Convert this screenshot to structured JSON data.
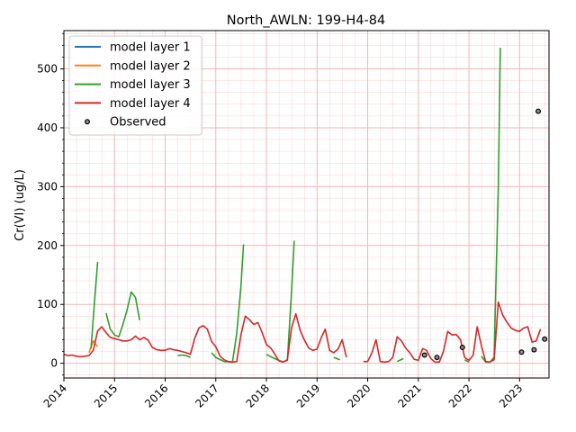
{
  "chart_data": {
    "type": "line",
    "title": "North_AWLN: 199-H4-84",
    "xlabel": "",
    "ylabel": "Cr(VI) (ug/L)",
    "xlim": [
      "2014-01-01",
      "2023-08-01"
    ],
    "ylim": [
      -25,
      565
    ],
    "x_ticks": [
      "2014",
      "2015",
      "2016",
      "2017",
      "2018",
      "2019",
      "2020",
      "2021",
      "2022",
      "2023"
    ],
    "y_ticks": [
      0,
      100,
      200,
      300,
      400,
      500
    ],
    "grid": true,
    "legend_position": "top-left",
    "colors": {
      "layer1": "#1f77b4",
      "layer2": "#ff7f0e",
      "layer3": "#2ca02c",
      "layer4": "#d62728",
      "observed": "#000000",
      "grid": "#f5b5b5"
    },
    "series": [
      {
        "name": "model layer 1",
        "color": "#1f77b4",
        "segments": []
      },
      {
        "name": "model layer 2",
        "color": "#ff7f0e",
        "segments": [
          [
            [
              "2014-07-01",
              18
            ],
            [
              "2014-08-01",
              38
            ],
            [
              "2014-09-01",
              28
            ]
          ]
        ]
      },
      {
        "name": "model layer 3",
        "color": "#2ca02c",
        "segments": [
          [
            [
              "2014-07-15",
              25
            ],
            [
              "2014-08-15",
              120
            ],
            [
              "2014-09-01",
              172
            ]
          ],
          [
            [
              "2014-11-01",
              85
            ],
            [
              "2014-12-01",
              58
            ],
            [
              "2015-01-01",
              48
            ],
            [
              "2015-02-01",
              45
            ],
            [
              "2015-03-01",
              65
            ],
            [
              "2015-04-01",
              90
            ],
            [
              "2015-05-01",
              121
            ],
            [
              "2015-06-01",
              112
            ],
            [
              "2015-07-01",
              73
            ]
          ],
          [
            [
              "2016-04-01",
              13
            ],
            [
              "2016-05-01",
              14
            ],
            [
              "2016-06-01",
              13
            ],
            [
              "2016-07-01",
              10
            ]
          ],
          [
            [
              "2016-12-01",
              18
            ],
            [
              "2017-01-01",
              10
            ],
            [
              "2017-03-01",
              3
            ],
            [
              "2017-05-01",
              2
            ],
            [
              "2017-06-01",
              50
            ],
            [
              "2017-07-01",
              130
            ],
            [
              "2017-07-20",
              202
            ]
          ],
          [
            [
              "2018-01-01",
              15
            ],
            [
              "2018-03-01",
              8
            ],
            [
              "2018-05-01",
              2
            ],
            [
              "2018-06-01",
              5
            ],
            [
              "2018-07-01",
              120
            ],
            [
              "2018-07-20",
              208
            ]
          ],
          [
            [
              "2019-05-01",
              10
            ],
            [
              "2019-06-15",
              6
            ]
          ],
          [
            [
              "2020-08-01",
              3
            ],
            [
              "2020-09-15",
              8
            ]
          ],
          [
            [
              "2021-12-01",
              6
            ],
            [
              "2022-01-01",
              2
            ]
          ],
          [
            [
              "2022-04-01",
              12
            ],
            [
              "2022-05-01",
              2
            ],
            [
              "2022-06-01",
              2
            ],
            [
              "2022-07-01",
              10
            ],
            [
              "2022-08-01",
              300
            ],
            [
              "2022-08-15",
              536
            ]
          ]
        ]
      },
      {
        "name": "model layer 4",
        "color": "#d62728",
        "segments": [
          [
            [
              "2014-01-01",
              15
            ],
            [
              "2014-02-01",
              13
            ],
            [
              "2014-03-01",
              14
            ],
            [
              "2014-04-01",
              12
            ],
            [
              "2014-05-01",
              11
            ],
            [
              "2014-06-01",
              12
            ],
            [
              "2014-07-01",
              13
            ],
            [
              "2014-08-01",
              22
            ],
            [
              "2014-09-01",
              55
            ],
            [
              "2014-10-01",
              62
            ],
            [
              "2014-11-01",
              52
            ],
            [
              "2014-12-01",
              44
            ],
            [
              "2015-01-01",
              42
            ],
            [
              "2015-02-01",
              40
            ],
            [
              "2015-03-01",
              38
            ],
            [
              "2015-04-01",
              38
            ],
            [
              "2015-05-01",
              40
            ],
            [
              "2015-06-01",
              46
            ],
            [
              "2015-07-01",
              40
            ],
            [
              "2015-08-01",
              44
            ],
            [
              "2015-09-01",
              39
            ],
            [
              "2015-10-01",
              27
            ],
            [
              "2015-11-01",
              23
            ],
            [
              "2015-12-01",
              22
            ],
            [
              "2016-01-01",
              22
            ],
            [
              "2016-02-01",
              25
            ],
            [
              "2016-03-01",
              23
            ],
            [
              "2016-04-01",
              22
            ],
            [
              "2016-05-01",
              20
            ],
            [
              "2016-06-01",
              18
            ],
            [
              "2016-07-01",
              15
            ],
            [
              "2016-08-01",
              42
            ],
            [
              "2016-09-01",
              60
            ],
            [
              "2016-10-01",
              64
            ],
            [
              "2016-11-01",
              58
            ],
            [
              "2016-12-01",
              37
            ],
            [
              "2017-01-01",
              28
            ],
            [
              "2017-02-01",
              12
            ],
            [
              "2017-03-01",
              6
            ],
            [
              "2017-04-01",
              3
            ],
            [
              "2017-05-01",
              2
            ],
            [
              "2017-06-01",
              3
            ],
            [
              "2017-07-01",
              48
            ],
            [
              "2017-08-01",
              80
            ],
            [
              "2017-09-01",
              74
            ],
            [
              "2017-10-01",
              66
            ],
            [
              "2017-11-01",
              69
            ],
            [
              "2017-12-01",
              52
            ],
            [
              "2018-01-01",
              32
            ],
            [
              "2018-02-01",
              26
            ],
            [
              "2018-03-01",
              16
            ],
            [
              "2018-04-01",
              4
            ],
            [
              "2018-05-01",
              2
            ],
            [
              "2018-06-01",
              6
            ],
            [
              "2018-07-01",
              60
            ],
            [
              "2018-08-01",
              84
            ],
            [
              "2018-09-01",
              56
            ],
            [
              "2018-10-01",
              40
            ],
            [
              "2018-11-01",
              26
            ],
            [
              "2018-12-01",
              22
            ],
            [
              "2019-01-01",
              24
            ],
            [
              "2019-02-01",
              44
            ],
            [
              "2019-03-01",
              58
            ],
            [
              "2019-04-01",
              22
            ],
            [
              "2019-05-01",
              18
            ],
            [
              "2019-06-01",
              24
            ],
            [
              "2019-07-01",
              40
            ],
            [
              "2019-08-01",
              10
            ]
          ],
          [
            [
              "2019-12-01",
              3
            ],
            [
              "2020-01-01",
              3
            ],
            [
              "2020-02-01",
              18
            ],
            [
              "2020-03-01",
              40
            ],
            [
              "2020-04-01",
              3
            ],
            [
              "2020-05-01",
              2
            ],
            [
              "2020-06-01",
              3
            ],
            [
              "2020-07-01",
              10
            ],
            [
              "2020-08-01",
              45
            ],
            [
              "2020-09-01",
              38
            ],
            [
              "2020-10-01",
              26
            ],
            [
              "2020-11-01",
              18
            ],
            [
              "2020-12-01",
              7
            ],
            [
              "2021-01-01",
              5
            ],
            [
              "2021-02-01",
              25
            ],
            [
              "2021-03-01",
              22
            ],
            [
              "2021-04-01",
              8
            ],
            [
              "2021-05-01",
              2
            ],
            [
              "2021-06-01",
              2
            ],
            [
              "2021-07-01",
              20
            ],
            [
              "2021-08-01",
              54
            ],
            [
              "2021-09-01",
              48
            ],
            [
              "2021-10-01",
              49
            ],
            [
              "2021-11-01",
              40
            ],
            [
              "2021-12-01",
              10
            ],
            [
              "2022-01-01",
              5
            ],
            [
              "2022-02-01",
              14
            ],
            [
              "2022-03-01",
              62
            ],
            [
              "2022-04-01",
              30
            ],
            [
              "2022-05-01",
              3
            ],
            [
              "2022-06-01",
              2
            ],
            [
              "2022-07-01",
              6
            ],
            [
              "2022-08-01",
              104
            ],
            [
              "2022-09-01",
              82
            ],
            [
              "2022-10-01",
              70
            ],
            [
              "2022-11-01",
              60
            ],
            [
              "2022-12-01",
              56
            ],
            [
              "2023-01-01",
              54
            ],
            [
              "2023-02-01",
              60
            ],
            [
              "2023-03-01",
              62
            ],
            [
              "2023-04-01",
              36
            ],
            [
              "2023-05-01",
              38
            ],
            [
              "2023-06-01",
              58
            ]
          ]
        ]
      }
    ],
    "observed": {
      "name": "Observed",
      "points": [
        [
          "2021-02-15",
          14
        ],
        [
          "2021-05-15",
          10
        ],
        [
          "2021-11-15",
          27
        ],
        [
          "2023-01-15",
          19
        ],
        [
          "2023-04-15",
          23
        ],
        [
          "2023-05-15",
          428
        ],
        [
          "2023-07-01",
          41
        ]
      ]
    }
  }
}
